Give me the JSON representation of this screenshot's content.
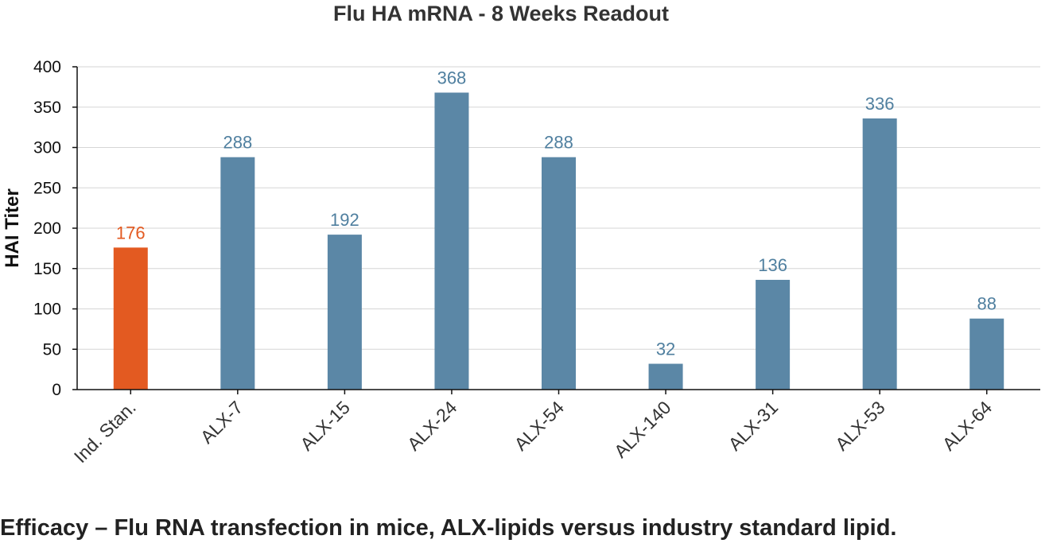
{
  "chart_data": {
    "type": "bar",
    "title": "Flu HA mRNA - 8 Weeks Readout",
    "xlabel": "",
    "ylabel": "HAI Titer",
    "ylim": [
      0,
      400
    ],
    "yticks": [
      0,
      50,
      100,
      150,
      200,
      250,
      300,
      350,
      400
    ],
    "grid": true,
    "categories": [
      "Ind. Stan.",
      "ALX-7",
      "ALX-15",
      "ALX-24",
      "ALX-54",
      "ALX-140",
      "ALX-31",
      "ALX-53",
      "ALX-64"
    ],
    "values": [
      176,
      288,
      192,
      368,
      288,
      32,
      136,
      336,
      88
    ],
    "data_labels": [
      "176",
      "288",
      "192",
      "368",
      "288",
      "32",
      "136",
      "336",
      "88"
    ],
    "bar_colors": [
      "#e35a21",
      "#5b87a6",
      "#5b87a6",
      "#5b87a6",
      "#5b87a6",
      "#5b87a6",
      "#5b87a6",
      "#5b87a6",
      "#5b87a6"
    ],
    "label_colors": [
      "#e35a21",
      "#4f7f9f",
      "#4f7f9f",
      "#4f7f9f",
      "#4f7f9f",
      "#4f7f9f",
      "#4f7f9f",
      "#4f7f9f",
      "#4f7f9f"
    ]
  },
  "caption": "Efficacy – Flu RNA transfection in mice, ALX-lipids versus industry standard lipid."
}
